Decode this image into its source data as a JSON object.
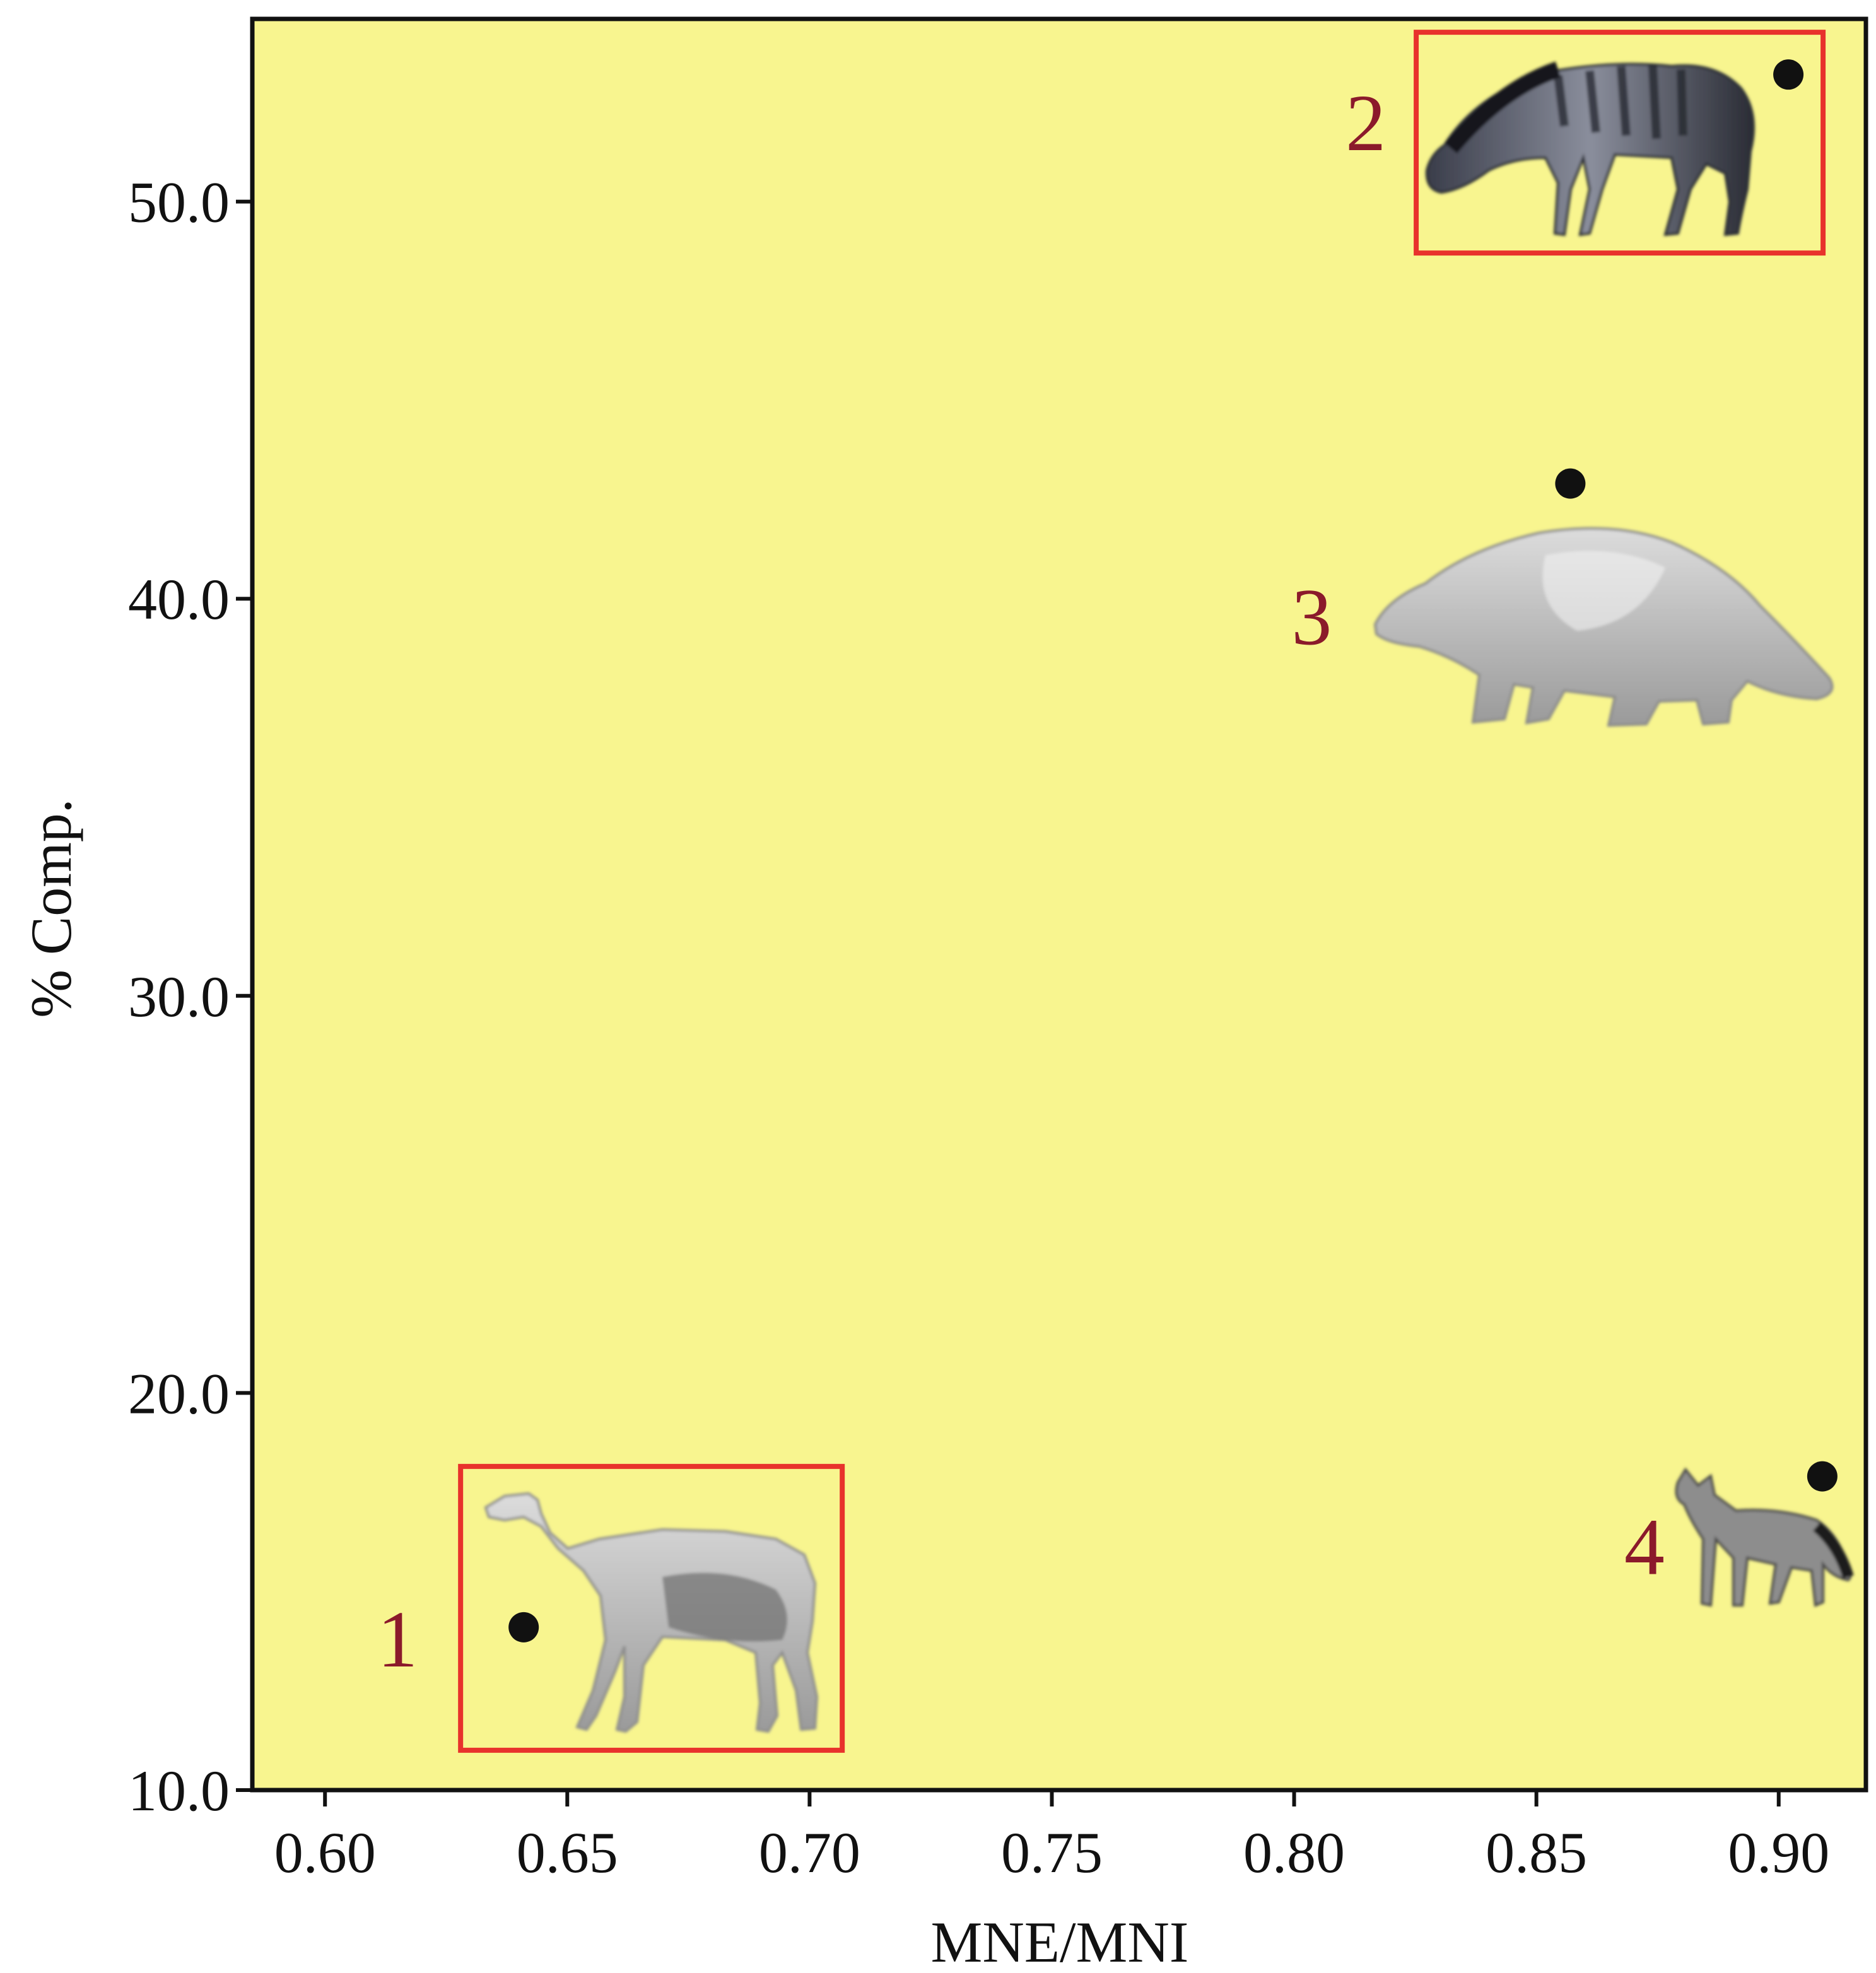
{
  "chart_data": {
    "type": "scatter",
    "title": "",
    "xlabel": "MNE/MNI",
    "ylabel": "% Comp.",
    "xlim": [
      0.585,
      0.918
    ],
    "ylim": [
      10.0,
      54.6
    ],
    "xticks": [
      0.6,
      0.65,
      0.7,
      0.75,
      0.8,
      0.85,
      0.9
    ],
    "xtick_labels": [
      "0.60",
      "0.65",
      "0.70",
      "0.75",
      "0.80",
      "0.85",
      "0.90"
    ],
    "yticks": [
      10.0,
      20.0,
      30.0,
      40.0,
      50.0
    ],
    "ytick_labels": [
      "10.0",
      "20.0",
      "30.0",
      "40.0",
      "50.0"
    ],
    "grid": false,
    "legend": "none",
    "points": [
      {
        "label": "1",
        "x": 0.641,
        "y": 14.1,
        "animal": "llama",
        "highlighted": true
      },
      {
        "label": "2",
        "x": 0.902,
        "y": 53.2,
        "animal": "horse",
        "highlighted": true
      },
      {
        "label": "3",
        "x": 0.857,
        "y": 42.9,
        "animal": "ground-sloth",
        "highlighted": false
      },
      {
        "label": "4",
        "x": 0.909,
        "y": 17.9,
        "animal": "fox",
        "highlighted": false
      }
    ],
    "colors": {
      "plot_background": "#f8f58f",
      "point": "#111111",
      "point_label": "#8b1a2b",
      "highlight_box": "#e8322c",
      "axis": "#111111"
    }
  }
}
